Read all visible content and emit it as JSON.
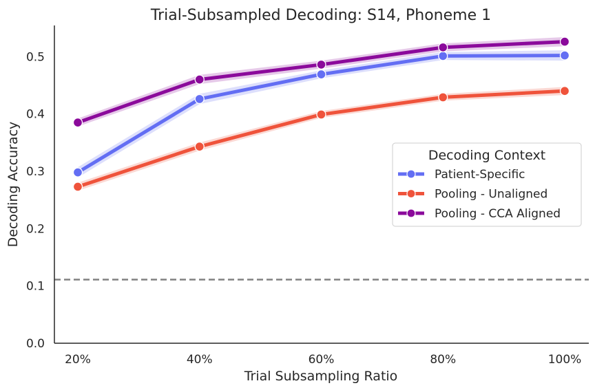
{
  "chart_data": {
    "type": "line",
    "title": "Trial-Subsampled Decoding: S14, Phoneme 1",
    "xlabel": "Trial Subsampling Ratio",
    "ylabel": "Decoding Accuracy",
    "categories": [
      "20%",
      "40%",
      "60%",
      "80%",
      "100%"
    ],
    "ylim": [
      0,
      0.555
    ],
    "yticks": [
      0.0,
      0.1,
      0.2,
      0.3,
      0.4,
      0.5
    ],
    "ytick_labels": [
      "0.0",
      "0.1",
      "0.2",
      "0.3",
      "0.4",
      "0.5"
    ],
    "grid": false,
    "legend": {
      "title": "Decoding Context",
      "placement": "center-right"
    },
    "reference_line": {
      "y": 0.111,
      "style": "dashed",
      "color": "#808080"
    },
    "series": [
      {
        "name": "Patient-Specific",
        "color": "#636ef3",
        "values": [
          0.298,
          0.426,
          0.469,
          0.501,
          0.502
        ],
        "ci_low": [
          0.289,
          0.417,
          0.462,
          0.494,
          0.493
        ],
        "ci_high": [
          0.307,
          0.435,
          0.476,
          0.508,
          0.511
        ]
      },
      {
        "name": "Pooling - Unaligned",
        "color": "#ef533b",
        "values": [
          0.273,
          0.343,
          0.399,
          0.429,
          0.44
        ],
        "ci_low": [
          0.266,
          0.336,
          0.393,
          0.423,
          0.433
        ],
        "ci_high": [
          0.28,
          0.35,
          0.405,
          0.435,
          0.447
        ]
      },
      {
        "name": "Pooling - CCA Aligned",
        "color": "#8b0a9b",
        "values": [
          0.385,
          0.46,
          0.486,
          0.516,
          0.526
        ],
        "ci_low": [
          0.378,
          0.452,
          0.479,
          0.509,
          0.518
        ],
        "ci_high": [
          0.392,
          0.468,
          0.493,
          0.523,
          0.534
        ]
      }
    ]
  }
}
